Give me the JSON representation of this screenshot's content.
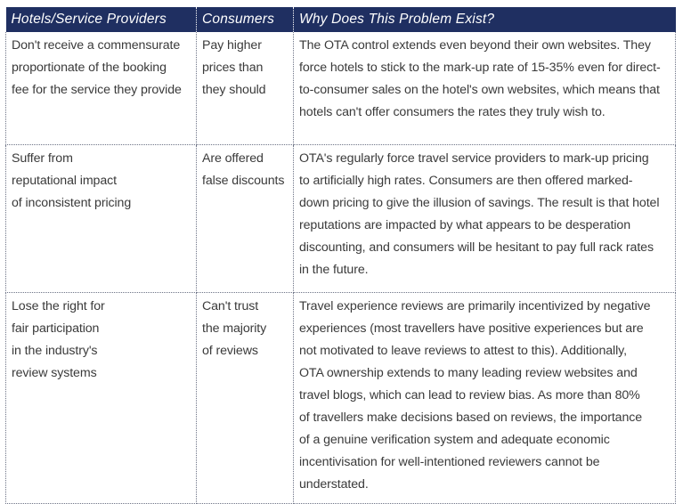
{
  "table": {
    "headers": [
      "Hotels/Service Providers",
      "Consumers",
      "Why Does This Problem Exist?"
    ],
    "rows": [
      [
        "Don't receive a commensurate\nproportionate of the booking\nfee for the service they provide",
        "Pay higher\nprices than\nthey should",
        "The OTA control extends even beyond their own websites. They\nforce hotels to stick to the mark-up rate of 15-35% even for direct-\nto-consumer sales on the hotel's own websites, which means that\nhotels can't offer consumers the rates they truly wish to."
      ],
      [
        "Suffer from\nreputational impact\nof inconsistent pricing",
        "Are offered\nfalse discounts",
        "OTA's regularly force travel service providers to mark-up pricing\nto artificially high rates. Consumers are then offered marked-\ndown pricing to give the illusion of savings. The result is that hotel\nreputations are impacted by what appears to be desperation\ndiscounting, and consumers will be hesitant to pay full rack rates\nin the future."
      ],
      [
        "Lose the right for\nfair participation\nin the industry's\nreview systems",
        "Can't trust\nthe majority\nof reviews",
        "Travel experience reviews are primarily incentivized by negative\nexperiences (most travellers have positive experiences but are\nnot motivated to leave reviews to attest to this). Additionally,\nOTA ownership extends to many leading review websites and\ntravel blogs, which can lead to review bias. As more than 80%\nof travellers make decisions based on reviews, the importance\nof a genuine verification system and adequate economic\nincentivisation for well-intentioned reviewers cannot be\nunderstated."
      ]
    ]
  },
  "colors": {
    "header_bg": "#1f2f61",
    "header_text": "#ffffff",
    "body_text": "#3a3a3a",
    "grid": "#6d7386"
  }
}
